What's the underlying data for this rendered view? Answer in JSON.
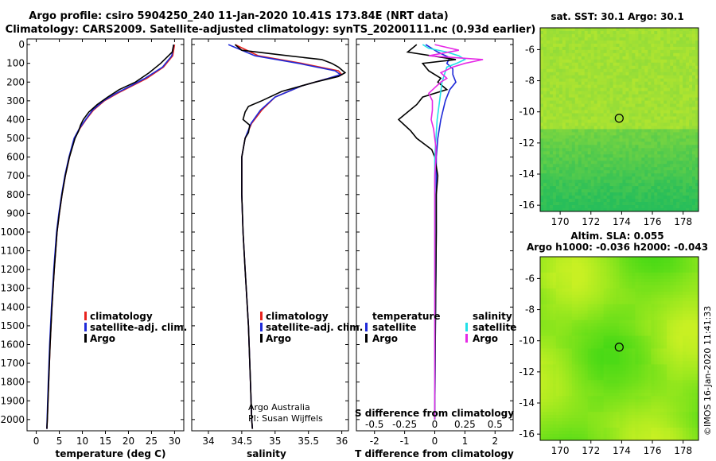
{
  "header": {
    "title_line1": "Argo profile: csiro 5904250_240 11-Jan-2020 10.41S 173.84E (NRT data)",
    "title_line2": "Climatology: CARS2009. Satellite-adjusted climatology: synTS_20200111.nc (0.93d earlier)"
  },
  "colors": {
    "climatology": "#e8231e",
    "satellite": "#1f2ad8",
    "argo": "#000000",
    "sat_salinity": "#22e0e8",
    "argo_salinity": "#e62ae6"
  },
  "depth_ticks": [
    "0",
    "100",
    "200",
    "300",
    "400",
    "500",
    "600",
    "700",
    "800",
    "900",
    "1000",
    "1100",
    "1200",
    "1300",
    "1400",
    "1500",
    "1600",
    "1700",
    "1800",
    "1900",
    "2000"
  ],
  "credits": {
    "line1": "Argo Australia",
    "line2": "PI: Susan Wijffels",
    "stamp": "©IMOS 16-Jan-2020 11:41:33"
  },
  "chart_data": [
    {
      "type": "line",
      "id": "temperature",
      "xlabel": "temperature (deg C)",
      "ylabel": "depth",
      "xlim": [
        -2,
        32
      ],
      "ylim": [
        2060,
        -30
      ],
      "xticks": [
        "0",
        "5",
        "10",
        "15",
        "20",
        "25",
        "30"
      ],
      "legend": [
        "climatology",
        "satellite-adj. clim.",
        "Argo"
      ],
      "series": [
        {
          "name": "climatology",
          "depth": [
            0,
            60,
            120,
            180,
            220,
            260,
            300,
            350,
            400,
            450,
            500,
            600,
            700,
            800,
            900,
            1000,
            1200,
            1400,
            1600,
            1800,
            2000,
            2050
          ],
          "values": [
            30.0,
            29.6,
            27.6,
            24.0,
            20.8,
            17.6,
            14.8,
            12.4,
            10.8,
            9.4,
            8.3,
            7.2,
            6.3,
            5.6,
            5.0,
            4.5,
            3.9,
            3.4,
            3.0,
            2.7,
            2.4,
            2.3
          ]
        },
        {
          "name": "satellite-adj. clim.",
          "depth": [
            0,
            60,
            120,
            180,
            220,
            260,
            300,
            350,
            400,
            450,
            500,
            600,
            700,
            800,
            900,
            1000,
            1200,
            1400,
            1600,
            1800,
            2000,
            2050
          ],
          "values": [
            29.8,
            29.4,
            27.4,
            23.6,
            20.5,
            17.3,
            14.6,
            12.2,
            10.7,
            9.3,
            8.2,
            7.1,
            6.2,
            5.5,
            4.9,
            4.4,
            3.8,
            3.3,
            2.9,
            2.6,
            2.35,
            2.3
          ]
        },
        {
          "name": "Argo",
          "depth": [
            0,
            40,
            100,
            150,
            200,
            240,
            280,
            320,
            360,
            400,
            430,
            460,
            500,
            600,
            700,
            800,
            900,
            1000,
            1200,
            1400,
            1600,
            1800,
            2000,
            2050
          ],
          "values": [
            29.8,
            29.5,
            27.0,
            24.5,
            21.5,
            18.0,
            15.5,
            13.2,
            11.4,
            10.2,
            9.6,
            9.2,
            8.4,
            7.2,
            6.3,
            5.6,
            5.0,
            4.5,
            3.9,
            3.4,
            3.0,
            2.7,
            2.4,
            2.3
          ]
        }
      ]
    },
    {
      "type": "line",
      "id": "salinity",
      "xlabel": "salinity",
      "ylabel": "depth",
      "xlim": [
        33.75,
        36.1
      ],
      "ylim": [
        2060,
        -30
      ],
      "xticks": [
        "34",
        "34.5",
        "35",
        "35.5",
        "36"
      ],
      "legend": [
        "climatology",
        "satellite-adj. clim.",
        "Argo"
      ],
      "series": [
        {
          "name": "climatology",
          "depth": [
            0,
            60,
            100,
            140,
            160,
            180,
            220,
            280,
            350,
            420,
            500,
            600,
            800,
            1000,
            1200,
            1500,
            1800,
            2000,
            2050
          ],
          "values": [
            34.4,
            34.75,
            35.4,
            35.95,
            36.0,
            35.8,
            35.4,
            35.0,
            34.8,
            34.65,
            34.55,
            34.5,
            34.5,
            34.52,
            34.55,
            34.6,
            34.63,
            34.65,
            34.66
          ]
        },
        {
          "name": "satellite-adj. clim.",
          "depth": [
            0,
            60,
            100,
            140,
            160,
            180,
            220,
            280,
            350,
            420,
            500,
            600,
            800,
            1000,
            1200,
            1500,
            1800,
            2000,
            2050
          ],
          "values": [
            34.3,
            34.7,
            35.35,
            35.9,
            35.98,
            35.8,
            35.4,
            35.0,
            34.78,
            34.64,
            34.55,
            34.5,
            34.5,
            34.52,
            34.55,
            34.6,
            34.63,
            34.65,
            34.66
          ]
        },
        {
          "name": "Argo",
          "depth": [
            0,
            30,
            60,
            80,
            100,
            120,
            150,
            170,
            200,
            250,
            300,
            330,
            360,
            400,
            430,
            470,
            500,
            600,
            800,
            1000,
            1200,
            1500,
            1800,
            2000,
            2050
          ],
          "values": [
            34.4,
            34.5,
            35.2,
            35.7,
            35.85,
            35.95,
            36.05,
            35.95,
            35.6,
            35.1,
            34.8,
            34.6,
            34.55,
            34.52,
            34.62,
            34.6,
            34.55,
            34.5,
            34.5,
            34.52,
            34.55,
            34.6,
            34.63,
            34.65,
            34.66
          ]
        }
      ]
    },
    {
      "type": "line",
      "id": "difference",
      "xlabel": "T difference from climatology",
      "xlabel_top": "S difference from climatology",
      "xlim": [
        -2.6,
        2.6
      ],
      "xlim_top": [
        -0.65,
        0.65
      ],
      "ylim": [
        2060,
        -30
      ],
      "xticks": [
        "-2",
        "-1",
        "0",
        "1",
        "2"
      ],
      "xticks_top": [
        "-0.5",
        "-0.25",
        "0",
        "0.25",
        "0.5"
      ],
      "legend_left_title": "temperature",
      "legend_right_title": "salinity",
      "legend_left": [
        "satellite",
        "Argo"
      ],
      "legend_right": [
        "satellite",
        "Argo"
      ],
      "series": [
        {
          "name": "temperature satellite",
          "depth": [
            0,
            40,
            70,
            100,
            130,
            160,
            200,
            240,
            300,
            400,
            500,
            600,
            700,
            800,
            1000,
            1500,
            2000
          ],
          "values": [
            -0.3,
            0.1,
            0.5,
            0.4,
            0.6,
            0.6,
            0.7,
            0.5,
            0.35,
            0.2,
            0.1,
            0.05,
            0.05,
            0.05,
            0.05,
            0.02,
            0.0
          ]
        },
        {
          "name": "temperature Argo",
          "depth": [
            0,
            40,
            80,
            100,
            140,
            180,
            200,
            240,
            280,
            320,
            360,
            400,
            430,
            460,
            500,
            560,
            600,
            700,
            800,
            1000,
            1500,
            2000
          ],
          "values": [
            -0.6,
            -0.9,
            0.7,
            -0.4,
            -0.2,
            0.2,
            0.1,
            0.4,
            -0.4,
            -0.6,
            -0.9,
            -1.2,
            -1.0,
            -0.8,
            -0.6,
            -0.1,
            0.0,
            0.1,
            0.05,
            0.05,
            0.02,
            0.0
          ]
        },
        {
          "name": "salinity satellite",
          "depth": [
            0,
            20,
            40,
            60,
            80,
            100,
            120,
            160,
            200,
            300,
            400,
            500,
            600,
            800,
            1000,
            1500,
            2000
          ],
          "values": [
            -0.1,
            -0.05,
            0.1,
            0.2,
            0.25,
            0.18,
            0.1,
            0.08,
            0.06,
            0.04,
            0.02,
            0.01,
            0.0,
            0.0,
            0.0,
            0.0,
            0.0
          ]
        },
        {
          "name": "salinity Argo",
          "depth": [
            0,
            30,
            60,
            80,
            100,
            120,
            150,
            180,
            200,
            260,
            300,
            350,
            400,
            450,
            500,
            550,
            600,
            700,
            800,
            1000,
            1500,
            2000
          ],
          "values": [
            0.0,
            0.2,
            -0.05,
            0.4,
            0.25,
            0.15,
            0.05,
            0.1,
            0.05,
            -0.05,
            -0.02,
            -0.02,
            -0.03,
            -0.01,
            0.0,
            0.01,
            0.01,
            0.0,
            0.0,
            0.0,
            0.0,
            0.0
          ]
        }
      ]
    },
    {
      "type": "heatmap",
      "id": "sst_map",
      "title": "sat. SST: 30.1  Argo: 30.1",
      "xticks": [
        "170",
        "172",
        "174",
        "176",
        "178"
      ],
      "yticks": [
        "-6",
        "-8",
        "-10",
        "-12",
        "-14",
        "-16"
      ],
      "xlim": [
        168.7,
        179.0
      ],
      "ylim": [
        -16.4,
        -4.6
      ],
      "marker": {
        "lon": 173.84,
        "lat": -10.41
      }
    },
    {
      "type": "heatmap",
      "id": "sla_map",
      "title": "Altim. SLA: 0.055",
      "subtitle": "Argo h1000: -0.036 h2000: -0.043",
      "xticks": [
        "170",
        "172",
        "174",
        "176",
        "178"
      ],
      "yticks": [
        "-6",
        "-8",
        "-10",
        "-12",
        "-14",
        "-16"
      ],
      "xlim": [
        168.7,
        179.0
      ],
      "ylim": [
        -16.4,
        -4.6
      ],
      "marker": {
        "lon": 173.84,
        "lat": -10.41
      }
    }
  ]
}
